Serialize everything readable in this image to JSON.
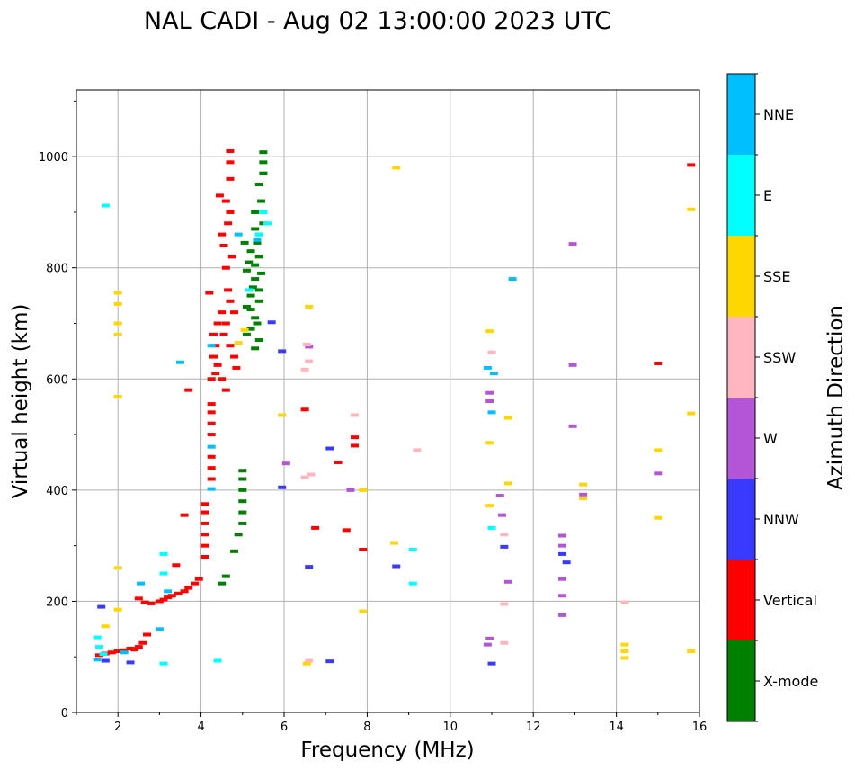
{
  "chart_data": {
    "type": "scatter",
    "title": "NAL CADI - Aug 02 13:00:00 2023 UTC",
    "xlabel": "Frequency (MHz)",
    "ylabel": "Virtual height (km)",
    "xlim": [
      1,
      16
    ],
    "ylim": [
      0,
      1120
    ],
    "xticks": [
      2,
      4,
      6,
      8,
      10,
      12,
      14,
      16
    ],
    "yticks": [
      0,
      200,
      400,
      600,
      800,
      1000
    ],
    "grid": true,
    "colorbar": {
      "label": "Azimuth Direction",
      "categories": [
        "X-mode",
        "Vertical",
        "NNW",
        "W",
        "SSW",
        "SSE",
        "E",
        "NNE"
      ],
      "colors": {
        "X-mode": "#008000",
        "Vertical": "#ff0000",
        "NNW": "#3a3aff",
        "W": "#b455d8",
        "SSW": "#ffb6c1",
        "SSE": "#ffd700",
        "E": "#00ffff",
        "NNE": "#00bfff"
      }
    },
    "series": [
      {
        "name": "Vertical",
        "points": [
          [
            1.55,
            103
          ],
          [
            1.7,
            106
          ],
          [
            1.85,
            108
          ],
          [
            2.0,
            110
          ],
          [
            2.15,
            112
          ],
          [
            2.3,
            115
          ],
          [
            2.4,
            113
          ],
          [
            2.5,
            118
          ],
          [
            2.6,
            125
          ],
          [
            2.7,
            140
          ],
          [
            2.5,
            205
          ],
          [
            2.65,
            198
          ],
          [
            2.8,
            196
          ],
          [
            3.0,
            200
          ],
          [
            3.1,
            203
          ],
          [
            3.2,
            207
          ],
          [
            3.3,
            210
          ],
          [
            3.45,
            214
          ],
          [
            3.6,
            218
          ],
          [
            3.7,
            224
          ],
          [
            3.85,
            232
          ],
          [
            3.95,
            240
          ],
          [
            3.4,
            265
          ],
          [
            3.6,
            355
          ],
          [
            4.1,
            280
          ],
          [
            4.1,
            300
          ],
          [
            4.1,
            320
          ],
          [
            4.1,
            340
          ],
          [
            4.1,
            360
          ],
          [
            4.1,
            375
          ],
          [
            4.25,
            420
          ],
          [
            4.25,
            440
          ],
          [
            4.25,
            460
          ],
          [
            4.25,
            500
          ],
          [
            4.25,
            520
          ],
          [
            4.25,
            540
          ],
          [
            4.25,
            555
          ],
          [
            4.25,
            600
          ],
          [
            4.35,
            610
          ],
          [
            4.4,
            625
          ],
          [
            4.3,
            640
          ],
          [
            4.35,
            660
          ],
          [
            4.3,
            680
          ],
          [
            4.4,
            700
          ],
          [
            4.5,
            720
          ],
          [
            4.6,
            700
          ],
          [
            4.55,
            680
          ],
          [
            4.7,
            660
          ],
          [
            4.8,
            640
          ],
          [
            4.85,
            620
          ],
          [
            4.5,
            600
          ],
          [
            4.6,
            580
          ],
          [
            4.7,
            740
          ],
          [
            4.65,
            760
          ],
          [
            4.8,
            720
          ],
          [
            4.6,
            800
          ],
          [
            4.75,
            820
          ],
          [
            4.55,
            840
          ],
          [
            4.5,
            860
          ],
          [
            4.65,
            880
          ],
          [
            4.7,
            900
          ],
          [
            4.6,
            920
          ],
          [
            4.45,
            930
          ],
          [
            4.7,
            960
          ],
          [
            4.7,
            990
          ],
          [
            4.7,
            1010
          ],
          [
            3.7,
            580
          ],
          [
            4.2,
            755
          ],
          [
            6.5,
            545
          ],
          [
            6.75,
            332
          ],
          [
            7.5,
            328
          ],
          [
            7.7,
            495
          ],
          [
            7.7,
            480
          ],
          [
            7.9,
            293
          ],
          [
            7.3,
            450
          ],
          [
            15.0,
            628
          ],
          [
            15.8,
            985
          ]
        ]
      },
      {
        "name": "X-mode",
        "points": [
          [
            4.5,
            232
          ],
          [
            4.6,
            245
          ],
          [
            4.8,
            290
          ],
          [
            4.9,
            320
          ],
          [
            5.0,
            340
          ],
          [
            5.0,
            360
          ],
          [
            5.0,
            380
          ],
          [
            5.0,
            400
          ],
          [
            5.0,
            420
          ],
          [
            5.0,
            435
          ],
          [
            5.3,
            655
          ],
          [
            5.4,
            670
          ],
          [
            5.2,
            690
          ],
          [
            5.3,
            710
          ],
          [
            5.1,
            730
          ],
          [
            5.2,
            750
          ],
          [
            5.4,
            760
          ],
          [
            5.3,
            780
          ],
          [
            5.1,
            795
          ],
          [
            5.3,
            805
          ],
          [
            5.4,
            820
          ],
          [
            5.2,
            830
          ],
          [
            5.35,
            845
          ],
          [
            5.4,
            860
          ],
          [
            5.3,
            870
          ],
          [
            5.5,
            880
          ],
          [
            5.3,
            900
          ],
          [
            5.45,
            920
          ],
          [
            5.4,
            950
          ],
          [
            5.5,
            970
          ],
          [
            5.5,
            990
          ],
          [
            5.5,
            1008
          ],
          [
            5.1,
            680
          ],
          [
            5.2,
            725
          ],
          [
            5.4,
            740
          ],
          [
            5.35,
            700
          ],
          [
            5.25,
            765
          ],
          [
            5.45,
            790
          ],
          [
            5.15,
            810
          ],
          [
            5.05,
            845
          ]
        ]
      },
      {
        "name": "NNW",
        "points": [
          [
            1.6,
            190
          ],
          [
            1.7,
            93
          ],
          [
            2.3,
            90
          ],
          [
            5.7,
            702
          ],
          [
            5.95,
            650
          ],
          [
            5.95,
            405
          ],
          [
            6.6,
            262
          ],
          [
            7.1,
            92
          ],
          [
            7.1,
            475
          ],
          [
            8.7,
            263
          ],
          [
            11.0,
            88
          ],
          [
            11.3,
            298
          ],
          [
            12.7,
            285
          ],
          [
            12.8,
            270
          ]
        ]
      },
      {
        "name": "W",
        "points": [
          [
            6.05,
            448
          ],
          [
            6.6,
            658
          ],
          [
            7.6,
            400
          ],
          [
            10.95,
            133
          ],
          [
            10.9,
            122
          ],
          [
            10.95,
            575
          ],
          [
            10.95,
            560
          ],
          [
            11.2,
            390
          ],
          [
            11.25,
            355
          ],
          [
            11.4,
            235
          ],
          [
            12.7,
            318
          ],
          [
            12.7,
            300
          ],
          [
            12.7,
            240
          ],
          [
            12.7,
            210
          ],
          [
            12.7,
            175
          ],
          [
            12.95,
            843
          ],
          [
            12.95,
            625
          ],
          [
            12.95,
            515
          ],
          [
            13.2,
            392
          ],
          [
            15.0,
            430
          ]
        ]
      },
      {
        "name": "SSW",
        "points": [
          [
            6.5,
            423
          ],
          [
            6.5,
            617
          ],
          [
            6.55,
            662
          ],
          [
            6.6,
            632
          ],
          [
            6.6,
            93
          ],
          [
            6.65,
            428
          ],
          [
            7.7,
            535
          ],
          [
            9.2,
            472
          ],
          [
            11.0,
            648
          ],
          [
            11.3,
            195
          ],
          [
            11.3,
            125
          ],
          [
            11.3,
            320
          ],
          [
            14.2,
            198
          ]
        ]
      },
      {
        "name": "SSE",
        "points": [
          [
            2.0,
            755
          ],
          [
            2.0,
            735
          ],
          [
            2.0,
            700
          ],
          [
            2.0,
            680
          ],
          [
            2.0,
            568
          ],
          [
            2.0,
            260
          ],
          [
            2.0,
            185
          ],
          [
            1.7,
            155
          ],
          [
            4.9,
            665
          ],
          [
            5.05,
            688
          ],
          [
            5.95,
            535
          ],
          [
            6.6,
            730
          ],
          [
            6.55,
            88
          ],
          [
            7.9,
            182
          ],
          [
            7.9,
            400
          ],
          [
            8.65,
            305
          ],
          [
            8.7,
            980
          ],
          [
            10.95,
            686
          ],
          [
            10.95,
            485
          ],
          [
            10.95,
            372
          ],
          [
            11.4,
            530
          ],
          [
            11.4,
            412
          ],
          [
            13.2,
            410
          ],
          [
            13.2,
            385
          ],
          [
            14.2,
            122
          ],
          [
            14.2,
            110
          ],
          [
            14.2,
            98
          ],
          [
            15.0,
            472
          ],
          [
            15.0,
            350
          ],
          [
            15.8,
            905
          ],
          [
            15.8,
            538
          ],
          [
            15.8,
            110
          ]
        ]
      },
      {
        "name": "E",
        "points": [
          [
            1.5,
            135
          ],
          [
            1.55,
            118
          ],
          [
            1.65,
            105
          ],
          [
            1.7,
            912
          ],
          [
            3.1,
            88
          ],
          [
            3.1,
            250
          ],
          [
            3.1,
            285
          ],
          [
            4.4,
            93
          ],
          [
            5.15,
            760
          ],
          [
            5.4,
            860
          ],
          [
            5.5,
            900
          ],
          [
            5.6,
            880
          ],
          [
            9.1,
            293
          ],
          [
            9.1,
            232
          ],
          [
            11.0,
            332
          ]
        ]
      },
      {
        "name": "NNE",
        "points": [
          [
            1.5,
            95
          ],
          [
            2.15,
            108
          ],
          [
            2.55,
            232
          ],
          [
            3.0,
            150
          ],
          [
            3.2,
            218
          ],
          [
            3.5,
            630
          ],
          [
            4.25,
            660
          ],
          [
            4.25,
            478
          ],
          [
            4.25,
            402
          ],
          [
            4.9,
            860
          ],
          [
            5.35,
            850
          ],
          [
            10.9,
            620
          ],
          [
            11.05,
            610
          ],
          [
            11.0,
            540
          ],
          [
            11.5,
            780
          ]
        ]
      }
    ]
  }
}
